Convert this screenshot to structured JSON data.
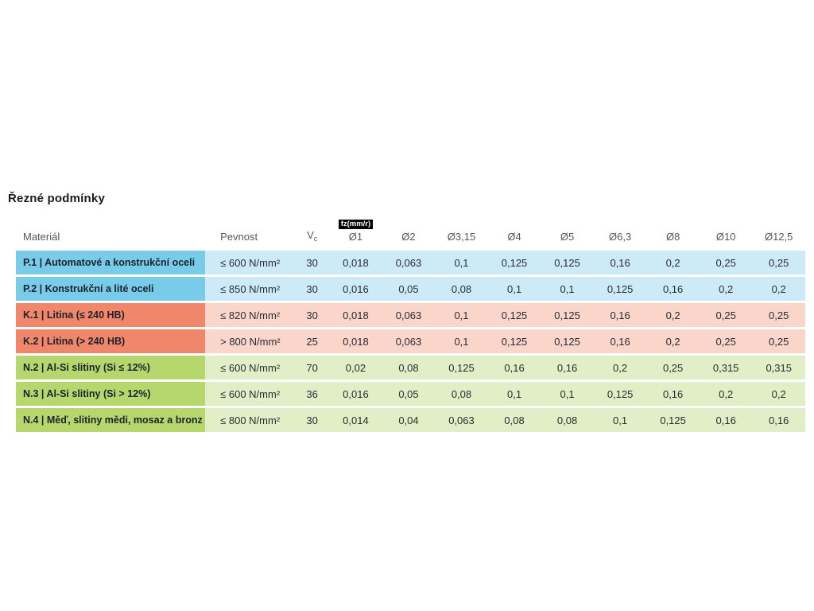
{
  "page": {
    "title": "Řezné podmínky"
  },
  "colors": {
    "p_dark": "#79cbea",
    "p_light": "#cdeaf8",
    "k_dark": "#f0876b",
    "k_light": "#f9d6c9",
    "n_dark": "#b5d76e",
    "n_light": "#e2eec6",
    "badge_bg": "#000000",
    "badge_text": "#ffffff",
    "header_text": "#55575f"
  },
  "table": {
    "headers": {
      "material": "Materiál",
      "strength": "Pevnost",
      "vc_main": "V",
      "vc_sub": "c",
      "fz_badge": "fz(mm/r)"
    },
    "diameter_headers": [
      "Ø1",
      "Ø2",
      "Ø3,15",
      "Ø4",
      "Ø5",
      "Ø6,3",
      "Ø8",
      "Ø10",
      "Ø12,5"
    ],
    "rows": [
      {
        "group": "P",
        "material": "P.1 | Automatové a konstrukční oceli",
        "strength": "≤ 600 N/mm²",
        "vc": "30",
        "fz": [
          "0,018",
          "0,063",
          "0,1",
          "0,125",
          "0,125",
          "0,16",
          "0,2",
          "0,25",
          "0,25"
        ]
      },
      {
        "group": "P",
        "material": "P.2 | Konstrukční a lité oceli",
        "strength": "≤ 850 N/mm²",
        "vc": "30",
        "fz": [
          "0,016",
          "0,05",
          "0,08",
          "0,1",
          "0,1",
          "0,125",
          "0,16",
          "0,2",
          "0,2"
        ]
      },
      {
        "group": "K",
        "material": "K.1 | Litina (≤ 240 HB)",
        "strength": "≤ 820 N/mm²",
        "vc": "30",
        "fz": [
          "0,018",
          "0,063",
          "0,1",
          "0,125",
          "0,125",
          "0,16",
          "0,2",
          "0,25",
          "0,25"
        ]
      },
      {
        "group": "K",
        "material": "K.2 | Litina (> 240 HB)",
        "strength": "> 800 N/mm²",
        "vc": "25",
        "fz": [
          "0,018",
          "0,063",
          "0,1",
          "0,125",
          "0,125",
          "0,16",
          "0,2",
          "0,25",
          "0,25"
        ]
      },
      {
        "group": "N",
        "material": "N.2 | Al-Si slitiny (Si ≤ 12%)",
        "strength": "≤ 600 N/mm²",
        "vc": "70",
        "fz": [
          "0,02",
          "0,08",
          "0,125",
          "0,16",
          "0,16",
          "0,2",
          "0,25",
          "0,315",
          "0,315"
        ]
      },
      {
        "group": "N",
        "material": "N.3 | Al-Si slitiny (Si > 12%)",
        "strength": "≤ 600 N/mm²",
        "vc": "36",
        "fz": [
          "0,016",
          "0,05",
          "0,08",
          "0,1",
          "0,1",
          "0,125",
          "0,16",
          "0,2",
          "0,2"
        ]
      },
      {
        "group": "N",
        "material": "N.4 | Měď, slitiny mědi, mosaz a bronz",
        "strength": "≤ 800 N/mm²",
        "vc": "30",
        "fz": [
          "0,014",
          "0,04",
          "0,063",
          "0,08",
          "0,08",
          "0,1",
          "0,125",
          "0,16",
          "0,16"
        ]
      }
    ]
  }
}
